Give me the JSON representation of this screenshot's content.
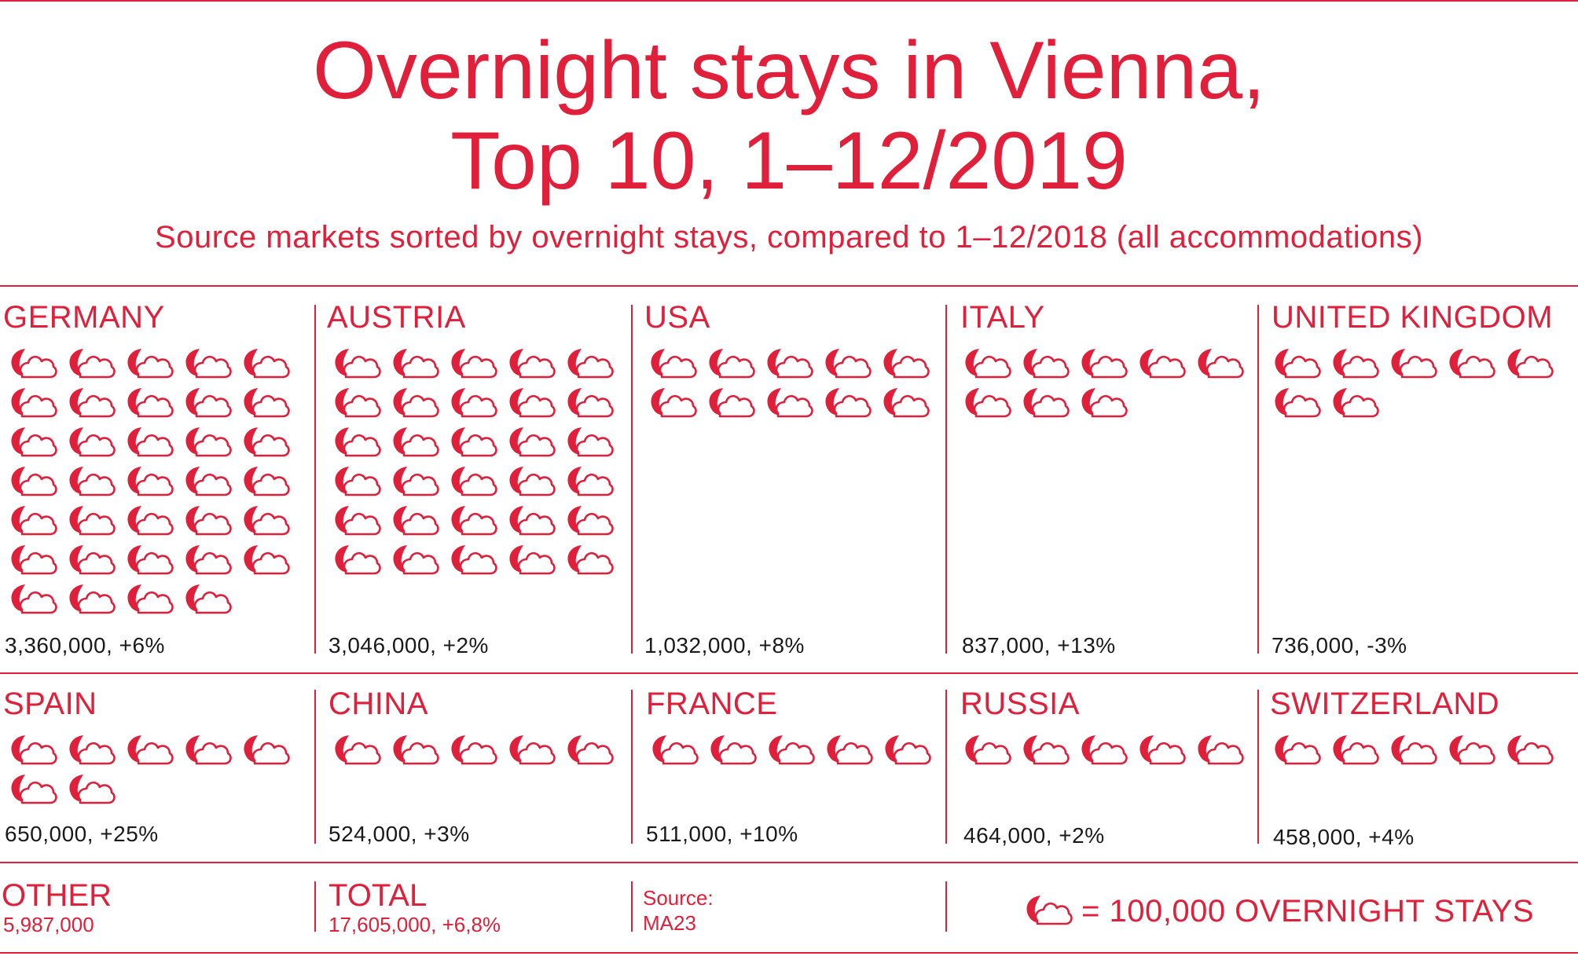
{
  "title_line1": "Overnight stays in Vienna,",
  "title_line2": "Top 10, 1–12/2019",
  "subtitle": "Source markets sorted by overnight stays, compared to 1–12/2018 (all accommodations)",
  "colors": {
    "accent": "#e0203a",
    "value_text": "#1a1a1a"
  },
  "icon_name": "moon-cloud-icon",
  "chart_data": {
    "type": "pictogram",
    "unit": "100,000 OVERNIGHT STAYS",
    "countries": [
      {
        "name": "GERMANY",
        "icons": 34,
        "value": 3360000,
        "label": "3,360,000, +6%"
      },
      {
        "name": "AUSTRIA",
        "icons": 30,
        "value": 3046000,
        "label": "3,046,000, +2%"
      },
      {
        "name": "USA",
        "icons": 10,
        "value": 1032000,
        "label": "1,032,000, +8%"
      },
      {
        "name": "ITALY",
        "icons": 8,
        "value": 837000,
        "label": "837,000, +13%"
      },
      {
        "name": "UNITED KINGDOM",
        "icons": 7,
        "value": 736000,
        "label": "736,000, -3%"
      },
      {
        "name": "SPAIN",
        "icons": 7,
        "value": 650000,
        "label": "650,000, +25%"
      },
      {
        "name": "CHINA",
        "icons": 5,
        "value": 524000,
        "label": "524,000, +3%"
      },
      {
        "name": "FRANCE",
        "icons": 5,
        "value": 511000,
        "label": "511,000, +10%"
      },
      {
        "name": "RUSSIA",
        "icons": 5,
        "value": 464000,
        "label": "464,000, +2%"
      },
      {
        "name": "SWITZERLAND",
        "icons": 5,
        "value": 458000,
        "label": "458,000, +4%"
      }
    ]
  },
  "other": {
    "label": "OTHER",
    "value": "5,987,000"
  },
  "total": {
    "label": "TOTAL",
    "value": "17,605,000, +6,8%"
  },
  "source": {
    "label": "Source:",
    "value": "MA23"
  },
  "legend": {
    "text": "= 100,000 OVERNIGHT STAYS"
  }
}
